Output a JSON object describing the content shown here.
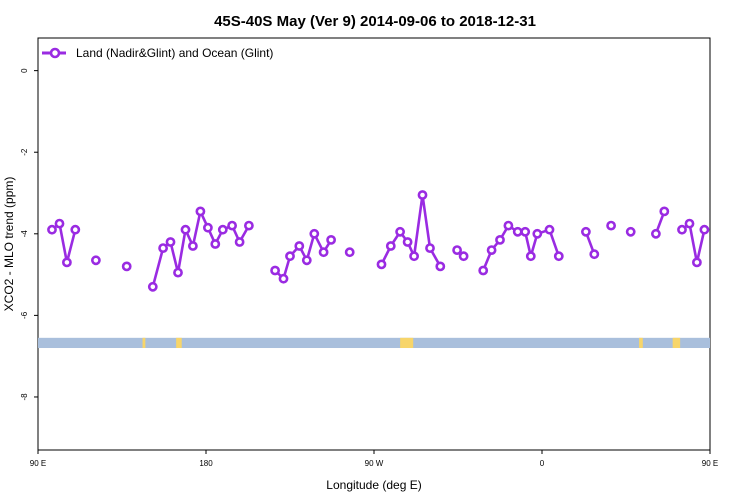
{
  "chart_data": {
    "type": "line",
    "title": "45S-40S May (Ver 9)   2014-09-06 to 2018-12-31",
    "xlabel": "Longitude (deg E)",
    "ylabel": "XCO2 - MLO trend (ppm)",
    "xlim": [
      90,
      450
    ],
    "ylim": [
      -9.3,
      0.8
    ],
    "x_ticks": [
      {
        "value": 90,
        "label": "90 E"
      },
      {
        "value": 180,
        "label": "180"
      },
      {
        "value": 270,
        "label": "90 W"
      },
      {
        "value": 360,
        "label": "0"
      },
      {
        "value": 450,
        "label": "90 E"
      },
      {
        "value": 540,
        "label": "180"
      }
    ],
    "y_ticks": [
      0,
      -2,
      -4,
      -6,
      -8
    ],
    "grid": false,
    "legend": {
      "position": "top-left",
      "label": "Land (Nadir&Glint) and Ocean (Glint)"
    },
    "series": [
      {
        "name": "Land (Nadir&Glint) and Ocean (Glint)",
        "color": "#9a2be2",
        "segments": [
          [
            [
              97.5,
              -3.9
            ],
            [
              101.5,
              -3.75
            ],
            [
              105.5,
              -4.7
            ],
            [
              110,
              -3.9
            ]
          ],
          [
            [
              121,
              -4.65
            ]
          ],
          [
            [
              137.5,
              -4.8
            ]
          ],
          [
            [
              151.5,
              -5.3
            ],
            [
              157,
              -4.35
            ],
            [
              161,
              -4.2
            ],
            [
              165,
              -4.95
            ],
            [
              169,
              -3.9
            ],
            [
              173,
              -4.3
            ],
            [
              177,
              -3.45
            ],
            [
              181,
              -3.85
            ],
            [
              185,
              -4.25
            ],
            [
              189,
              -3.9
            ],
            [
              194,
              -3.8
            ],
            [
              198,
              -4.2
            ],
            [
              203,
              -3.8
            ]
          ],
          [
            [
              217,
              -4.9
            ],
            [
              221.5,
              -5.1
            ],
            [
              225,
              -4.55
            ],
            [
              230,
              -4.3
            ],
            [
              234,
              -4.65
            ],
            [
              238,
              -4.0
            ],
            [
              243,
              -4.45
            ],
            [
              247,
              -4.15
            ]
          ],
          [
            [
              257,
              -4.45
            ]
          ],
          [
            [
              274,
              -4.75
            ],
            [
              279,
              -4.3
            ],
            [
              284,
              -3.95
            ],
            [
              288,
              -4.2
            ],
            [
              291.5,
              -4.55
            ],
            [
              296,
              -3.05
            ],
            [
              300,
              -4.35
            ],
            [
              305.5,
              -4.8
            ]
          ],
          [
            [
              314.5,
              -4.4
            ],
            [
              318,
              -4.55
            ]
          ],
          [
            [
              328.5,
              -4.9
            ],
            [
              333,
              -4.4
            ],
            [
              337.5,
              -4.15
            ],
            [
              342,
              -3.8
            ],
            [
              347,
              -3.95
            ],
            [
              351,
              -3.95
            ],
            [
              354,
              -4.55
            ],
            [
              357.5,
              -4.0
            ],
            [
              364,
              -3.9
            ],
            [
              369,
              -4.55
            ]
          ],
          [
            [
              383.5,
              -3.95
            ],
            [
              388,
              -4.5
            ]
          ],
          [
            [
              397,
              -3.8
            ]
          ],
          [
            [
              407.5,
              -3.95
            ]
          ],
          [
            [
              421,
              -4.0
            ],
            [
              425.5,
              -3.45
            ]
          ],
          [
            [
              435,
              -3.9
            ],
            [
              439,
              -3.75
            ],
            [
              443,
              -4.7
            ],
            [
              447,
              -3.9
            ]
          ]
        ]
      }
    ],
    "land_strip": {
      "y_from": -6.55,
      "y_to": -6.8,
      "ocean_color": "#a9bfdc",
      "land_color": "#f7d56a",
      "land_patches": [
        [
          146,
          147.5
        ],
        [
          164,
          167
        ],
        [
          284,
          291
        ],
        [
          412,
          414
        ],
        [
          430,
          434
        ]
      ]
    }
  }
}
